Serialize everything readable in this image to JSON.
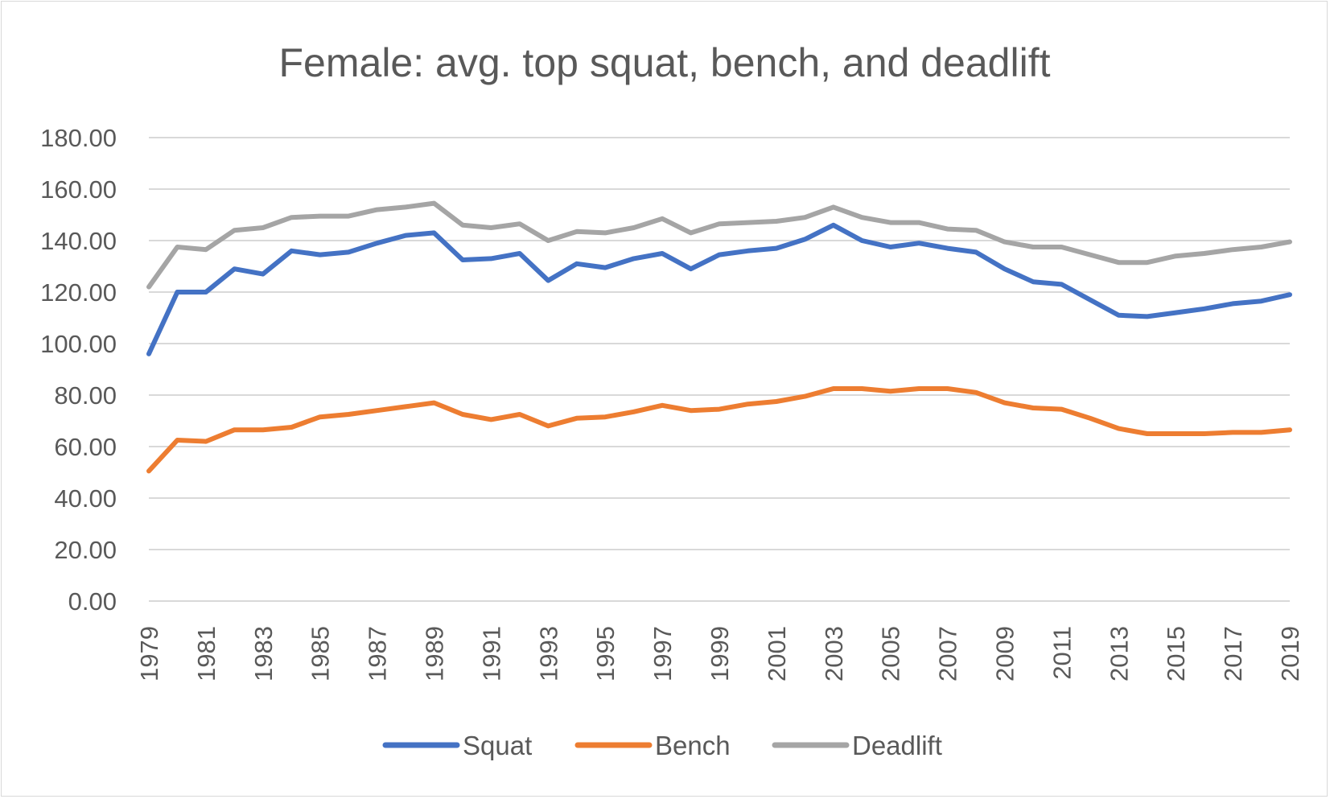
{
  "chart_data": {
    "type": "line",
    "title": "Female: avg. top squat, bench, and deadlift",
    "xlabel": "",
    "ylabel": "",
    "ylim": [
      0,
      180
    ],
    "y_ticks": [
      "0.00",
      "20.00",
      "40.00",
      "60.00",
      "80.00",
      "100.00",
      "120.00",
      "140.00",
      "160.00",
      "180.00"
    ],
    "x_tick_labels": [
      "1979",
      "1981",
      "1983",
      "1985",
      "1987",
      "1989",
      "1991",
      "1993",
      "1995",
      "1997",
      "1999",
      "2001",
      "2003",
      "2005",
      "2007",
      "2009",
      "2011",
      "2013",
      "2015",
      "2017",
      "2019"
    ],
    "x": [
      1979,
      1980,
      1981,
      1982,
      1983,
      1984,
      1985,
      1986,
      1987,
      1988,
      1989,
      1990,
      1991,
      1992,
      1993,
      1994,
      1995,
      1996,
      1997,
      1998,
      1999,
      2000,
      2001,
      2002,
      2003,
      2004,
      2005,
      2006,
      2007,
      2008,
      2009,
      2010,
      2011,
      2012,
      2013,
      2014,
      2015,
      2016,
      2017,
      2018,
      2019
    ],
    "grid": true,
    "legend_position": "bottom",
    "series": [
      {
        "name": "Squat",
        "color": "#4472c4",
        "values": [
          96,
          120,
          120,
          129,
          127,
          136,
          134.5,
          135.5,
          139,
          142,
          143,
          132.5,
          133,
          135,
          124.5,
          131,
          129.5,
          133,
          135,
          129,
          134.5,
          136,
          137,
          140.5,
          146,
          140,
          137.5,
          139,
          137,
          135.5,
          129,
          124,
          123,
          117,
          111,
          110.5,
          112,
          113.5,
          115.5,
          116.5,
          119
        ]
      },
      {
        "name": "Bench",
        "color": "#ed7d31",
        "values": [
          50.5,
          62.5,
          62,
          66.5,
          66.5,
          67.5,
          71.5,
          72.5,
          74,
          75.5,
          77,
          72.5,
          70.5,
          72.5,
          68,
          71,
          71.5,
          73.5,
          76,
          74,
          74.5,
          76.5,
          77.5,
          79.5,
          82.5,
          82.5,
          81.5,
          82.5,
          82.5,
          81,
          77,
          75,
          74.5,
          71,
          67,
          65,
          65,
          65,
          65.5,
          65.5,
          66.5
        ]
      },
      {
        "name": "Deadlift",
        "color": "#a5a5a5",
        "values": [
          122,
          137.5,
          136.5,
          144,
          145,
          149,
          149.5,
          149.5,
          152,
          153,
          154.5,
          146,
          145,
          146.5,
          140,
          143.5,
          143,
          145,
          148.5,
          143,
          146.5,
          147,
          147.5,
          149,
          153,
          149,
          147,
          147,
          144.5,
          144,
          139.5,
          137.5,
          137.5,
          134.5,
          131.5,
          131.5,
          134,
          135,
          136.5,
          137.5,
          139.5
        ]
      }
    ]
  }
}
